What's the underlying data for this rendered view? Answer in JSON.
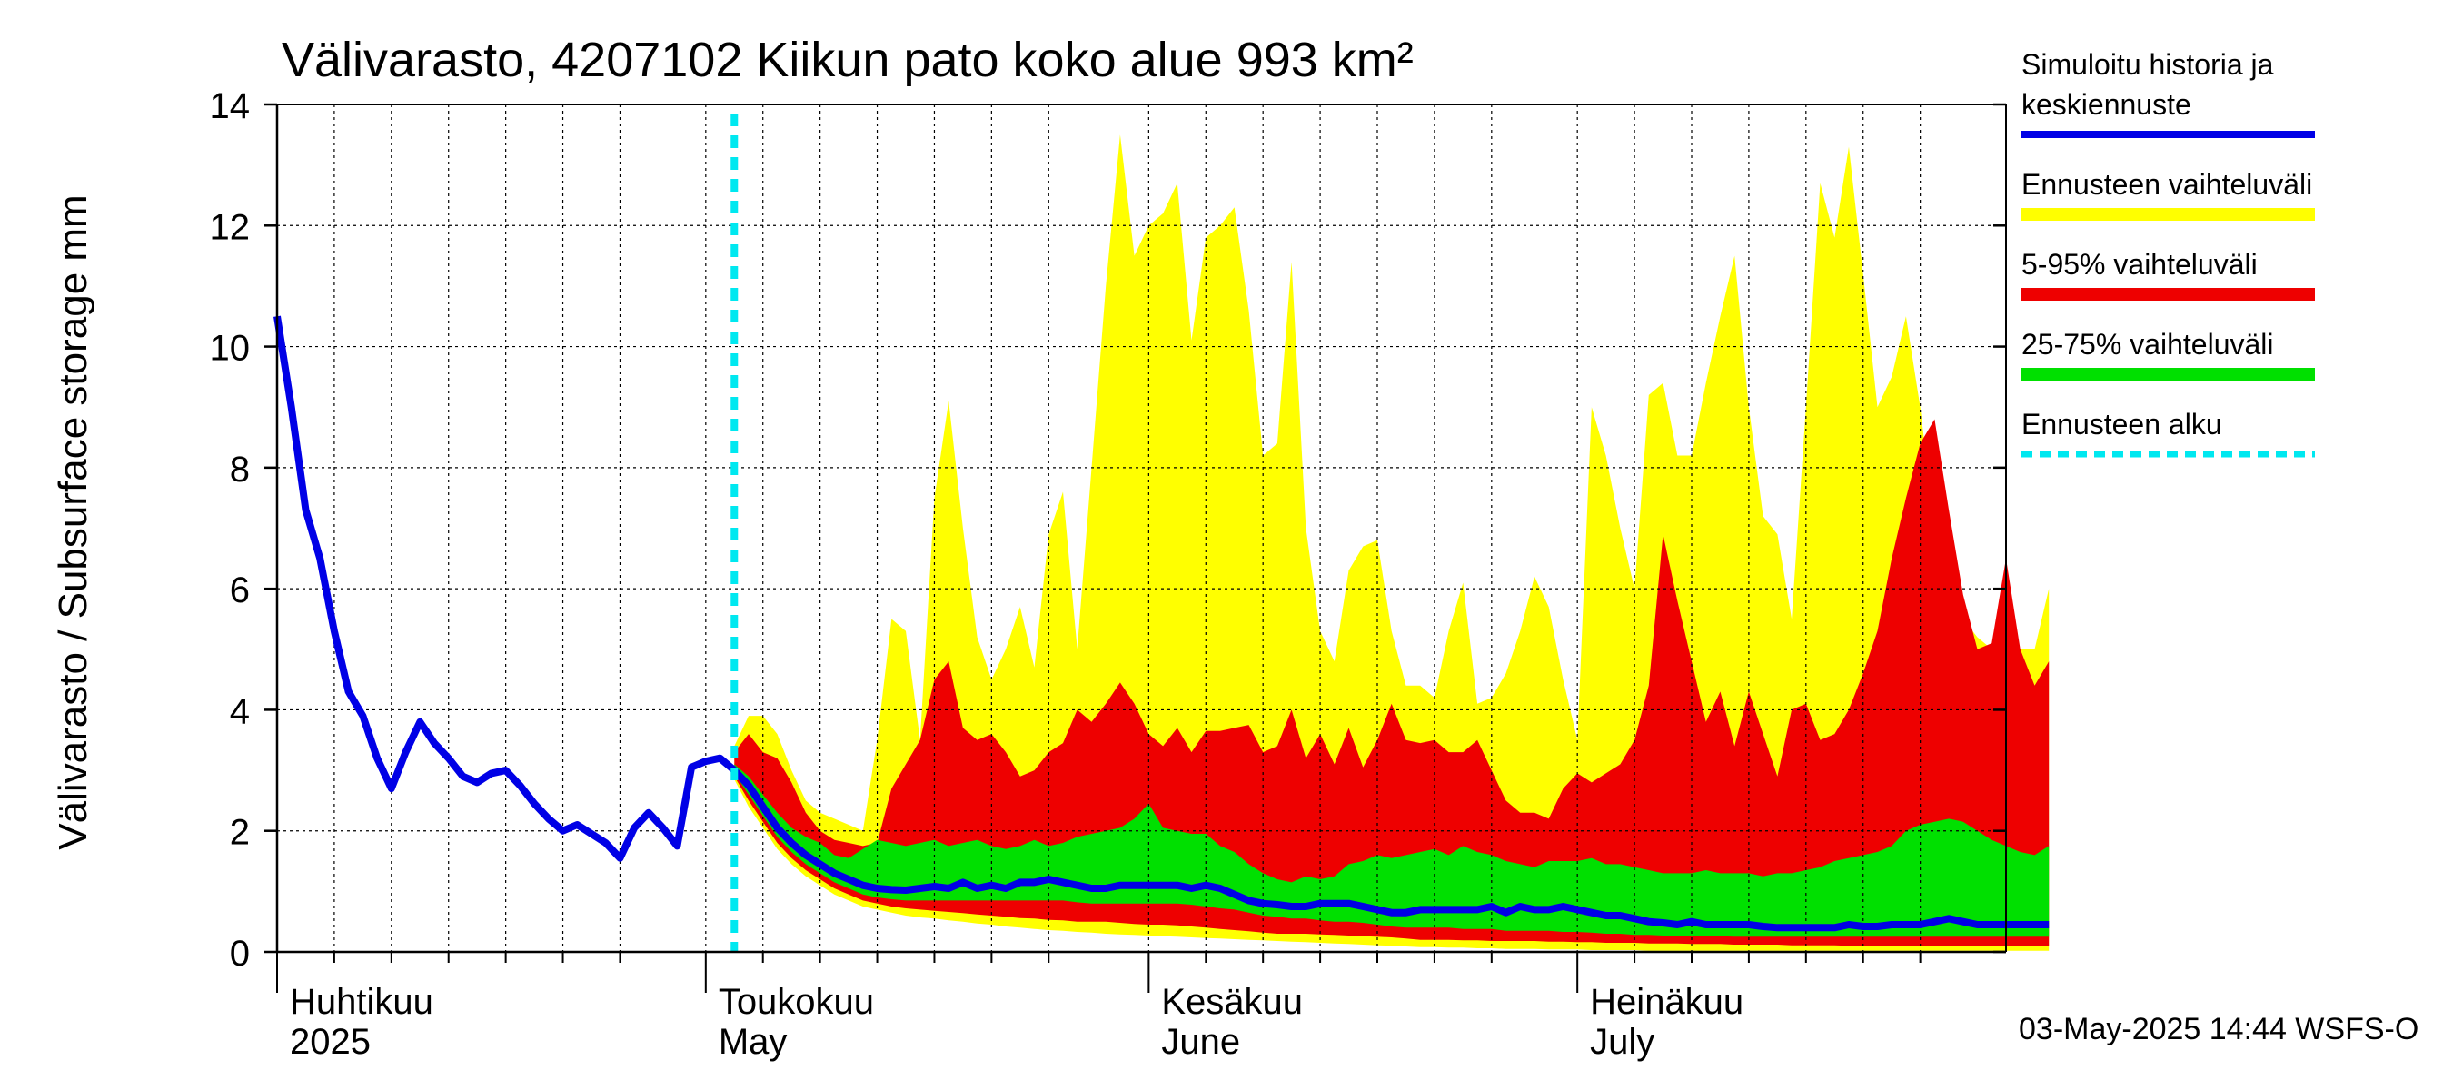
{
  "chart_data": {
    "type": "area",
    "title": "Välivarasto, 4207102 Kiikun pato koko alue 993 km²",
    "ylabel": "Välivarasto / Subsurface storage  mm",
    "ylim": [
      0,
      14
    ],
    "yticks": [
      0,
      2,
      4,
      6,
      8,
      10,
      12,
      14
    ],
    "x_start": "2025-04-01",
    "x_end": "2025-07-31",
    "forecast_start": "2025-05-03",
    "grid": true,
    "legend_position": "right",
    "month_labels": [
      {
        "fi": "Huhtikuu",
        "en": "2025",
        "date": "2025-04-01"
      },
      {
        "fi": "Toukokuu",
        "en": "May",
        "date": "2025-05-01"
      },
      {
        "fi": "Kesäkuu",
        "en": "June",
        "date": "2025-06-01"
      },
      {
        "fi": "Heinäkuu",
        "en": "July",
        "date": "2025-07-01"
      }
    ],
    "legend": [
      {
        "label_lines": [
          "Simuloitu historia ja",
          "keskiennuste"
        ],
        "color": "#0000e6",
        "style": "line"
      },
      {
        "label_lines": [
          "Ennusteen vaihteluväli"
        ],
        "color": "#ffff00",
        "style": "band"
      },
      {
        "label_lines": [
          "5-95% vaihteluväli"
        ],
        "color": "#ee0000",
        "style": "band"
      },
      {
        "label_lines": [
          "25-75% vaihteluväli"
        ],
        "color": "#00e000",
        "style": "band"
      },
      {
        "label_lines": [
          "Ennusteen alku"
        ],
        "color": "#00e8f0",
        "style": "dashed"
      }
    ],
    "history": {
      "x": [
        "2025-04-01",
        "2025-04-02",
        "2025-04-03",
        "2025-04-04",
        "2025-04-05",
        "2025-04-06",
        "2025-04-07",
        "2025-04-08",
        "2025-04-09",
        "2025-04-10",
        "2025-04-11",
        "2025-04-12",
        "2025-04-13",
        "2025-04-14",
        "2025-04-15",
        "2025-04-16",
        "2025-04-17",
        "2025-04-18",
        "2025-04-19",
        "2025-04-20",
        "2025-04-21",
        "2025-04-22",
        "2025-04-23",
        "2025-04-24",
        "2025-04-25",
        "2025-04-26",
        "2025-04-27",
        "2025-04-28",
        "2025-04-29",
        "2025-04-30",
        "2025-05-01",
        "2025-05-02",
        "2025-05-03"
      ],
      "y": [
        10.5,
        9.0,
        7.3,
        6.5,
        5.3,
        4.3,
        3.9,
        3.2,
        2.7,
        3.3,
        3.8,
        3.45,
        3.2,
        2.9,
        2.8,
        2.95,
        3.0,
        2.75,
        2.45,
        2.2,
        2.0,
        2.1,
        1.95,
        1.8,
        1.55,
        2.05,
        2.3,
        2.05,
        1.75,
        3.05,
        3.15,
        3.2,
        3.0
      ]
    },
    "forecast": {
      "start_date": "2025-05-03",
      "step_days": 1,
      "median": [
        3.0,
        2.75,
        2.4,
        2.05,
        1.8,
        1.6,
        1.45,
        1.3,
        1.2,
        1.1,
        1.05,
        1.03,
        1.02,
        1.05,
        1.08,
        1.05,
        1.15,
        1.05,
        1.1,
        1.05,
        1.15,
        1.15,
        1.2,
        1.15,
        1.1,
        1.05,
        1.05,
        1.1,
        1.1,
        1.1,
        1.1,
        1.1,
        1.05,
        1.1,
        1.05,
        0.95,
        0.85,
        0.8,
        0.78,
        0.75,
        0.75,
        0.8,
        0.8,
        0.8,
        0.75,
        0.7,
        0.65,
        0.65,
        0.7,
        0.7,
        0.7,
        0.7,
        0.7,
        0.75,
        0.65,
        0.75,
        0.7,
        0.7,
        0.75,
        0.7,
        0.65,
        0.6,
        0.6,
        0.55,
        0.5,
        0.48,
        0.45,
        0.5,
        0.45,
        0.45,
        0.45,
        0.45,
        0.42,
        0.4,
        0.4,
        0.4,
        0.4,
        0.4,
        0.45,
        0.42,
        0.42,
        0.45,
        0.45,
        0.45,
        0.5,
        0.55,
        0.5,
        0.45,
        0.45,
        0.45,
        0.45,
        0.45,
        0.45
      ],
      "p25": [
        2.95,
        2.6,
        2.25,
        1.9,
        1.65,
        1.45,
        1.3,
        1.15,
        1.05,
        0.95,
        0.9,
        0.87,
        0.85,
        0.85,
        0.85,
        0.85,
        0.85,
        0.85,
        0.85,
        0.85,
        0.85,
        0.85,
        0.85,
        0.85,
        0.82,
        0.8,
        0.8,
        0.8,
        0.8,
        0.8,
        0.8,
        0.8,
        0.78,
        0.75,
        0.72,
        0.7,
        0.65,
        0.6,
        0.58,
        0.55,
        0.55,
        0.52,
        0.5,
        0.5,
        0.48,
        0.45,
        0.42,
        0.4,
        0.4,
        0.4,
        0.4,
        0.38,
        0.38,
        0.38,
        0.35,
        0.35,
        0.35,
        0.35,
        0.33,
        0.33,
        0.32,
        0.3,
        0.3,
        0.28,
        0.28,
        0.27,
        0.27,
        0.26,
        0.26,
        0.26,
        0.25,
        0.25,
        0.25,
        0.25,
        0.25,
        0.25,
        0.25,
        0.25,
        0.25,
        0.25,
        0.25,
        0.25,
        0.25,
        0.25,
        0.25,
        0.25,
        0.25,
        0.25,
        0.25,
        0.25,
        0.25,
        0.25,
        0.25
      ],
      "p75": [
        3.1,
        2.9,
        2.6,
        2.3,
        2.05,
        1.9,
        1.8,
        1.6,
        1.55,
        1.7,
        1.85,
        1.8,
        1.75,
        1.8,
        1.85,
        1.75,
        1.8,
        1.85,
        1.75,
        1.7,
        1.75,
        1.85,
        1.75,
        1.8,
        1.9,
        1.95,
        2.0,
        2.05,
        2.2,
        2.45,
        2.05,
        2.0,
        1.95,
        1.95,
        1.75,
        1.65,
        1.45,
        1.3,
        1.2,
        1.15,
        1.25,
        1.2,
        1.25,
        1.45,
        1.5,
        1.6,
        1.55,
        1.6,
        1.65,
        1.7,
        1.6,
        1.75,
        1.65,
        1.6,
        1.5,
        1.45,
        1.4,
        1.5,
        1.5,
        1.5,
        1.55,
        1.45,
        1.45,
        1.4,
        1.35,
        1.3,
        1.3,
        1.3,
        1.35,
        1.3,
        1.3,
        1.3,
        1.25,
        1.3,
        1.3,
        1.35,
        1.4,
        1.5,
        1.55,
        1.6,
        1.65,
        1.75,
        2.0,
        2.1,
        2.15,
        2.2,
        2.15,
        2.0,
        1.85,
        1.75,
        1.65,
        1.6,
        1.75
      ],
      "p5": [
        2.9,
        2.5,
        2.15,
        1.8,
        1.55,
        1.35,
        1.2,
        1.05,
        0.95,
        0.85,
        0.8,
        0.75,
        0.72,
        0.7,
        0.68,
        0.66,
        0.64,
        0.62,
        0.6,
        0.58,
        0.56,
        0.55,
        0.53,
        0.52,
        0.5,
        0.5,
        0.5,
        0.48,
        0.46,
        0.45,
        0.45,
        0.44,
        0.42,
        0.4,
        0.38,
        0.36,
        0.34,
        0.32,
        0.3,
        0.3,
        0.3,
        0.29,
        0.28,
        0.27,
        0.26,
        0.25,
        0.24,
        0.22,
        0.2,
        0.2,
        0.2,
        0.19,
        0.19,
        0.18,
        0.18,
        0.18,
        0.18,
        0.17,
        0.17,
        0.16,
        0.16,
        0.15,
        0.15,
        0.15,
        0.14,
        0.14,
        0.14,
        0.13,
        0.13,
        0.13,
        0.12,
        0.12,
        0.12,
        0.12,
        0.11,
        0.11,
        0.11,
        0.11,
        0.1,
        0.1,
        0.1,
        0.1,
        0.1,
        0.1,
        0.1,
        0.1,
        0.1,
        0.1,
        0.1,
        0.1,
        0.1,
        0.1,
        0.1
      ],
      "p95": [
        3.3,
        3.6,
        3.3,
        3.2,
        2.8,
        2.3,
        2.0,
        1.85,
        1.8,
        1.75,
        1.8,
        2.7,
        3.1,
        3.5,
        4.5,
        4.8,
        3.7,
        3.5,
        3.6,
        3.3,
        2.9,
        3.0,
        3.3,
        3.45,
        4.0,
        3.8,
        4.1,
        4.45,
        4.1,
        3.6,
        3.4,
        3.7,
        3.3,
        3.65,
        3.65,
        3.7,
        3.75,
        3.3,
        3.4,
        4.0,
        3.2,
        3.6,
        3.1,
        3.7,
        3.05,
        3.5,
        4.1,
        3.5,
        3.45,
        3.5,
        3.3,
        3.3,
        3.5,
        3.0,
        2.5,
        2.3,
        2.3,
        2.2,
        2.7,
        2.95,
        2.8,
        2.95,
        3.1,
        3.5,
        4.4,
        6.9,
        5.8,
        4.8,
        3.8,
        4.3,
        3.4,
        4.3,
        3.6,
        2.9,
        4.0,
        4.1,
        3.5,
        3.6,
        4.0,
        4.6,
        5.3,
        6.5,
        7.5,
        8.4,
        8.8,
        7.3,
        5.9,
        5.0,
        5.1,
        6.5,
        5.0,
        4.4,
        4.8
      ],
      "max": [
        3.4,
        3.9,
        3.9,
        3.6,
        3.0,
        2.5,
        2.3,
        2.2,
        2.1,
        2.0,
        3.5,
        5.5,
        5.3,
        3.5,
        7.5,
        9.1,
        7.0,
        5.2,
        4.5,
        5.0,
        5.7,
        4.7,
        6.9,
        7.6,
        5.0,
        8.0,
        11.0,
        13.5,
        11.5,
        12.0,
        12.2,
        12.7,
        10.1,
        11.8,
        12.0,
        12.3,
        10.6,
        8.2,
        8.4,
        11.4,
        7.0,
        5.3,
        4.8,
        6.3,
        6.7,
        6.8,
        5.3,
        4.4,
        4.4,
        4.2,
        5.3,
        6.1,
        4.1,
        4.2,
        4.6,
        5.3,
        6.2,
        5.7,
        4.5,
        3.5,
        9.0,
        8.2,
        7.0,
        6.0,
        9.2,
        9.4,
        8.2,
        8.2,
        9.4,
        10.5,
        11.5,
        9.0,
        7.2,
        6.9,
        5.5,
        9.0,
        12.7,
        11.8,
        13.3,
        11.2,
        9.0,
        9.5,
        10.5,
        9.0,
        7.0,
        5.8,
        5.5,
        5.2,
        5.0,
        5.0,
        5.0,
        5.0,
        6.0
      ],
      "min": [
        2.85,
        2.4,
        2.05,
        1.7,
        1.45,
        1.25,
        1.1,
        0.95,
        0.85,
        0.75,
        0.7,
        0.65,
        0.6,
        0.57,
        0.55,
        0.52,
        0.5,
        0.47,
        0.45,
        0.42,
        0.4,
        0.38,
        0.36,
        0.35,
        0.33,
        0.32,
        0.3,
        0.29,
        0.28,
        0.27,
        0.26,
        0.25,
        0.24,
        0.23,
        0.22,
        0.21,
        0.2,
        0.19,
        0.18,
        0.17,
        0.16,
        0.15,
        0.14,
        0.13,
        0.12,
        0.11,
        0.1,
        0.09,
        0.08,
        0.08,
        0.07,
        0.07,
        0.06,
        0.06,
        0.05,
        0.05,
        0.05,
        0.04,
        0.04,
        0.04,
        0.03,
        0.03,
        0.03,
        0.03,
        0.02,
        0.02,
        0.02,
        0.02,
        0.02,
        0.02,
        0.02,
        0.02,
        0.02,
        0.02,
        0.02,
        0.02,
        0.02,
        0.02,
        0.02,
        0.02,
        0.02,
        0.02,
        0.02,
        0.02,
        0.02,
        0.02,
        0.02,
        0.02,
        0.02,
        0.02,
        0.02,
        0.02,
        0.02
      ]
    },
    "colors": {
      "history_line": "#0000e6",
      "range_full": "#ffff00",
      "range_5_95": "#ee0000",
      "range_25_75": "#00e000",
      "forecast_start_line": "#00e8f0",
      "grid": "#000000"
    }
  },
  "footer": {
    "timestamp": "03-May-2025 14:44 WSFS-O"
  }
}
